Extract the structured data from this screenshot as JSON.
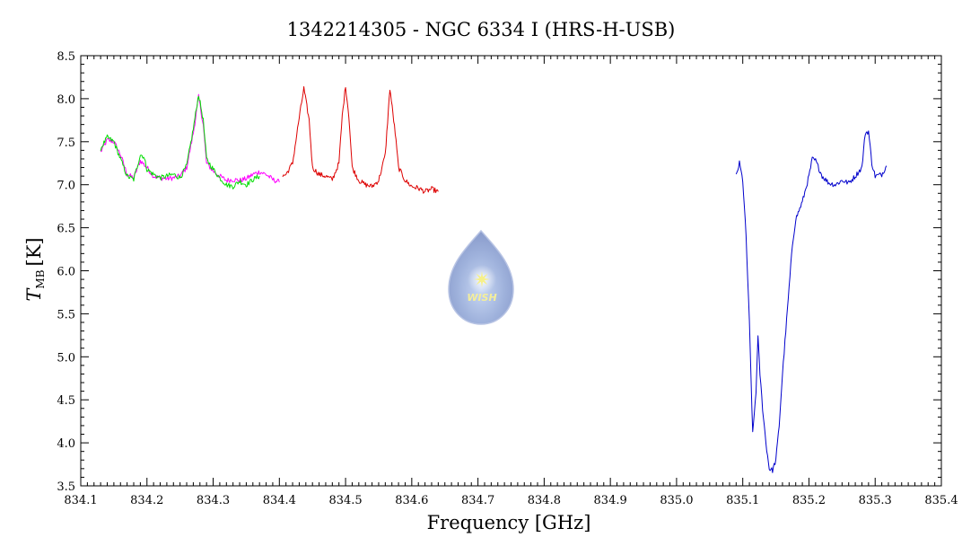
{
  "chart_data": {
    "type": "line",
    "title": "1342214305 - NGC 6334 I (HRS-H-USB)",
    "xlabel": "Frequency [GHz]",
    "ylabel": {
      "symbol": "T",
      "subscript": "MB",
      "unit": "[K]"
    },
    "xlim": [
      834.1,
      835.4
    ],
    "ylim": [
      3.5,
      8.5
    ],
    "x_ticks": [
      "834.1",
      "834.2",
      "834.3",
      "834.4",
      "834.5",
      "834.6",
      "834.7",
      "834.8",
      "834.9",
      "835.0",
      "835.1",
      "835.2",
      "835.3",
      "835.4"
    ],
    "y_ticks": [
      "3.5",
      "4.0",
      "4.5",
      "5.0",
      "5.5",
      "6.0",
      "6.5",
      "7.0",
      "7.5",
      "8.0",
      "8.5"
    ],
    "grid": false,
    "logo": {
      "label": "WISH",
      "colors": {
        "drop": "#9fb2dc",
        "rim": "#b8c4e4",
        "star": "#f6f08a"
      }
    },
    "series": [
      {
        "color": "#ff00ff",
        "points": [
          [
            834.13,
            7.38
          ],
          [
            834.14,
            7.52
          ],
          [
            834.15,
            7.5
          ],
          [
            834.16,
            7.35
          ],
          [
            834.17,
            7.12
          ],
          [
            834.18,
            7.08
          ],
          [
            834.19,
            7.28
          ],
          [
            834.2,
            7.2
          ],
          [
            834.21,
            7.1
          ],
          [
            834.22,
            7.08
          ],
          [
            834.23,
            7.07
          ],
          [
            834.24,
            7.08
          ],
          [
            834.25,
            7.1
          ],
          [
            834.26,
            7.2
          ],
          [
            834.27,
            7.6
          ],
          [
            834.278,
            8.02
          ],
          [
            834.285,
            7.7
          ],
          [
            834.29,
            7.25
          ],
          [
            834.3,
            7.16
          ],
          [
            834.31,
            7.1
          ],
          [
            834.32,
            7.05
          ],
          [
            834.33,
            7.06
          ],
          [
            834.34,
            7.05
          ],
          [
            834.35,
            7.07
          ],
          [
            834.36,
            7.12
          ],
          [
            834.37,
            7.15
          ],
          [
            834.38,
            7.12
          ],
          [
            834.39,
            7.06
          ],
          [
            834.4,
            7.03
          ]
        ]
      },
      {
        "color": "#00dd00",
        "points": [
          [
            834.13,
            7.42
          ],
          [
            834.14,
            7.55
          ],
          [
            834.15,
            7.5
          ],
          [
            834.16,
            7.3
          ],
          [
            834.17,
            7.1
          ],
          [
            834.18,
            7.06
          ],
          [
            834.19,
            7.35
          ],
          [
            834.195,
            7.33
          ],
          [
            834.2,
            7.18
          ],
          [
            834.21,
            7.12
          ],
          [
            834.22,
            7.08
          ],
          [
            834.23,
            7.1
          ],
          [
            834.24,
            7.12
          ],
          [
            834.25,
            7.08
          ],
          [
            834.26,
            7.22
          ],
          [
            834.27,
            7.65
          ],
          [
            834.278,
            8.05
          ],
          [
            834.285,
            7.75
          ],
          [
            834.29,
            7.3
          ],
          [
            834.3,
            7.18
          ],
          [
            834.31,
            7.08
          ],
          [
            834.32,
            7.0
          ],
          [
            834.33,
            6.98
          ],
          [
            834.34,
            7.04
          ],
          [
            834.35,
            7.0
          ],
          [
            834.36,
            7.06
          ],
          [
            834.37,
            7.1
          ]
        ]
      },
      {
        "color": "#dd0000",
        "points": [
          [
            834.405,
            7.1
          ],
          [
            834.41,
            7.12
          ],
          [
            834.42,
            7.25
          ],
          [
            834.43,
            7.78
          ],
          [
            834.437,
            8.12
          ],
          [
            834.445,
            7.75
          ],
          [
            834.45,
            7.2
          ],
          [
            834.46,
            7.12
          ],
          [
            834.47,
            7.1
          ],
          [
            834.48,
            7.06
          ],
          [
            834.49,
            7.25
          ],
          [
            834.495,
            7.8
          ],
          [
            834.5,
            8.15
          ],
          [
            834.505,
            7.8
          ],
          [
            834.51,
            7.2
          ],
          [
            834.52,
            7.05
          ],
          [
            834.53,
            7.0
          ],
          [
            834.54,
            6.98
          ],
          [
            834.55,
            7.05
          ],
          [
            834.56,
            7.35
          ],
          [
            834.567,
            8.12
          ],
          [
            834.575,
            7.6
          ],
          [
            834.58,
            7.2
          ],
          [
            834.59,
            7.05
          ],
          [
            834.6,
            6.98
          ],
          [
            834.61,
            6.96
          ],
          [
            834.62,
            6.92
          ],
          [
            834.63,
            6.95
          ],
          [
            834.64,
            6.92
          ]
        ]
      },
      {
        "color": "#0000cc",
        "points": [
          [
            835.09,
            7.1
          ],
          [
            835.095,
            7.25
          ],
          [
            835.1,
            7.05
          ],
          [
            835.105,
            6.4
          ],
          [
            835.11,
            5.4
          ],
          [
            835.115,
            4.1
          ],
          [
            835.12,
            4.6
          ],
          [
            835.123,
            5.22
          ],
          [
            835.126,
            4.8
          ],
          [
            835.13,
            4.4
          ],
          [
            835.135,
            4.0
          ],
          [
            835.14,
            3.7
          ],
          [
            835.145,
            3.68
          ],
          [
            835.15,
            3.8
          ],
          [
            835.155,
            4.2
          ],
          [
            835.16,
            4.8
          ],
          [
            835.165,
            5.3
          ],
          [
            835.17,
            5.8
          ],
          [
            835.175,
            6.3
          ],
          [
            835.18,
            6.6
          ],
          [
            835.19,
            6.8
          ],
          [
            835.2,
            7.1
          ],
          [
            835.205,
            7.3
          ],
          [
            835.21,
            7.28
          ],
          [
            835.22,
            7.1
          ],
          [
            835.23,
            7.02
          ],
          [
            835.24,
            7.0
          ],
          [
            835.25,
            7.05
          ],
          [
            835.26,
            7.02
          ],
          [
            835.27,
            7.1
          ],
          [
            835.28,
            7.2
          ],
          [
            835.285,
            7.6
          ],
          [
            835.29,
            7.62
          ],
          [
            835.295,
            7.25
          ],
          [
            835.3,
            7.1
          ],
          [
            835.31,
            7.12
          ],
          [
            835.317,
            7.22
          ]
        ]
      }
    ]
  }
}
